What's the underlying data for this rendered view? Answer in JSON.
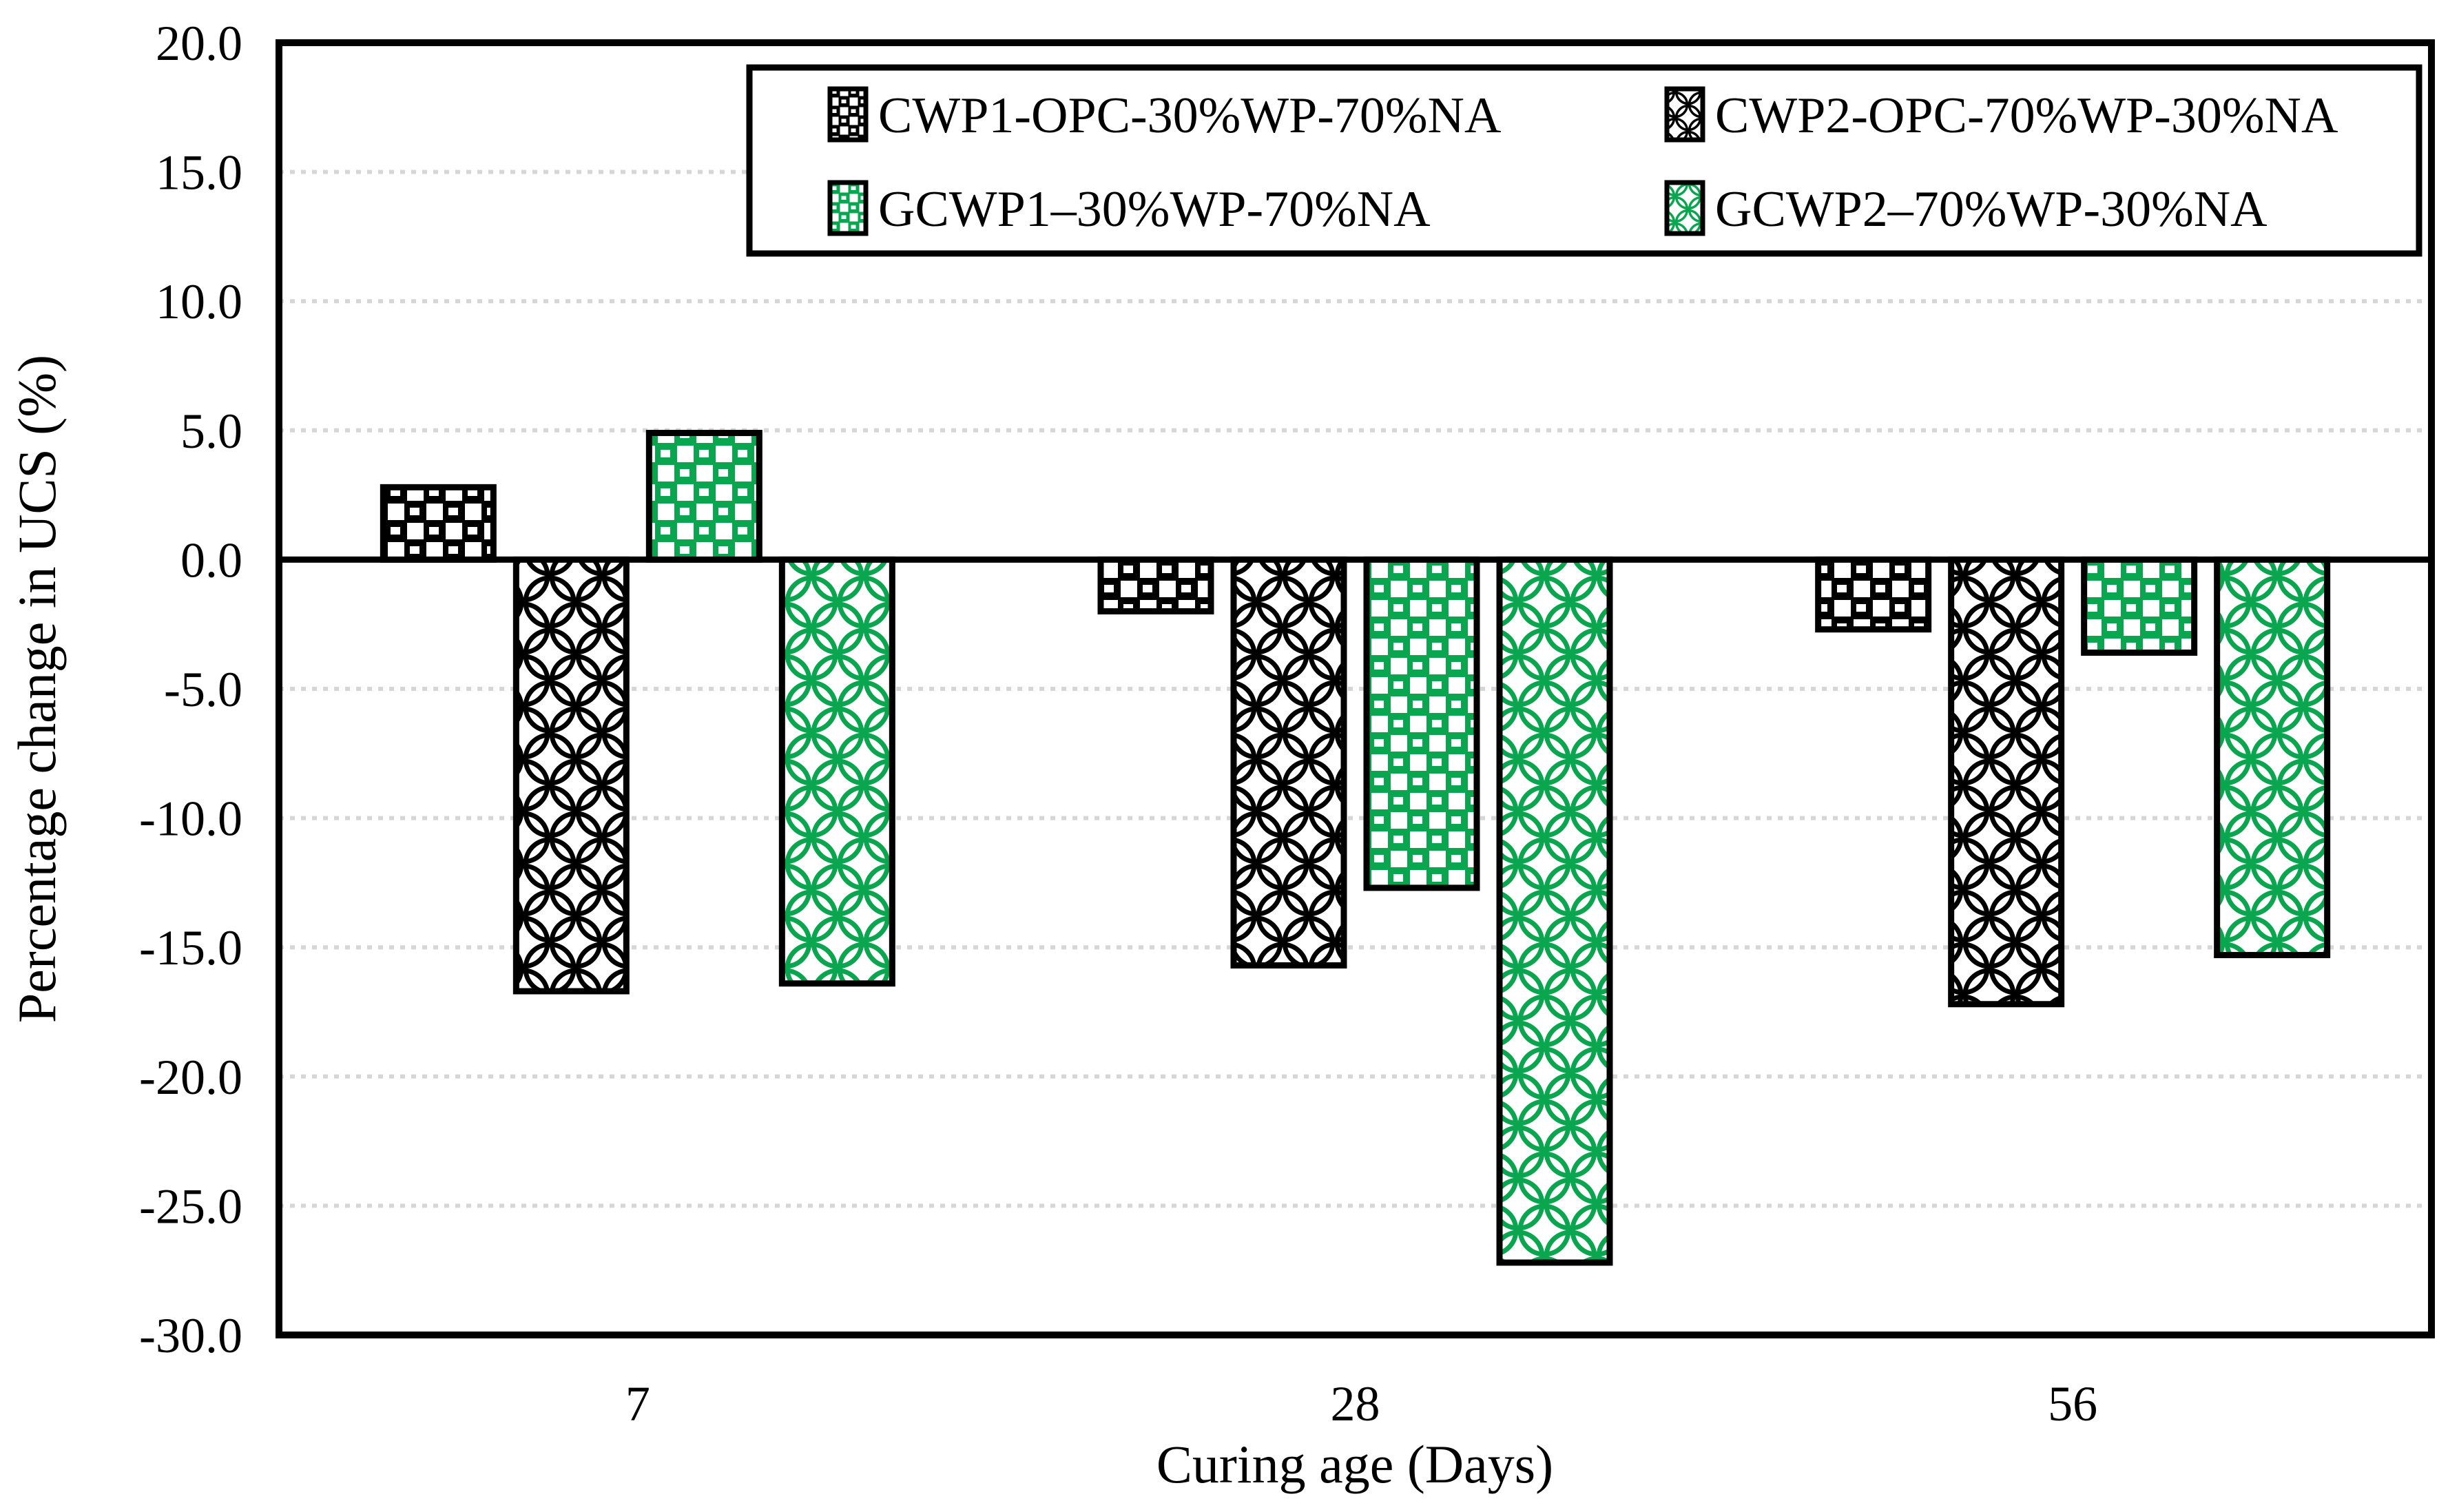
{
  "chart_data": {
    "type": "bar",
    "title": "",
    "xlabel": "Curing age (Days)",
    "ylabel": "Percentage change in UCS (%)",
    "categories": [
      "7",
      "28",
      "56"
    ],
    "series": [
      {
        "name": "CWP1-OPC-30%WP-70%NA",
        "color": "#000000",
        "pattern": "ball",
        "values": [
          2.8,
          -2.0,
          -2.7
        ]
      },
      {
        "name": "CWP2-OPC-70%WP-30%NA",
        "color": "#000000",
        "pattern": "lattice",
        "values": [
          -16.7,
          -15.7,
          -17.2
        ]
      },
      {
        "name": "GCWP1–30%WP-70%NA",
        "color": "#0AA64F",
        "pattern": "ball",
        "values": [
          4.9,
          -12.7,
          -3.6
        ]
      },
      {
        "name": "GCWP2–70%WP-30%NA",
        "color": "#0AA64F",
        "pattern": "lattice",
        "values": [
          -16.4,
          -27.2,
          -15.3
        ]
      }
    ],
    "ylim": [
      -30,
      20
    ],
    "ytick_step": 5,
    "ytick_labels": [
      "20.0",
      "15.0",
      "10.0",
      "5.0",
      "0.0",
      "-5.0",
      "-10.0",
      "-15.0",
      "-20.0",
      "-25.0",
      "-30.0"
    ],
    "grid": true,
    "gridline_color": "#D6D6D6",
    "axis_color": "#000000",
    "plot_bg": "#FFFFFF",
    "legend_position": "top-inside",
    "legend_rows": 2,
    "legend_cols": 2
  }
}
